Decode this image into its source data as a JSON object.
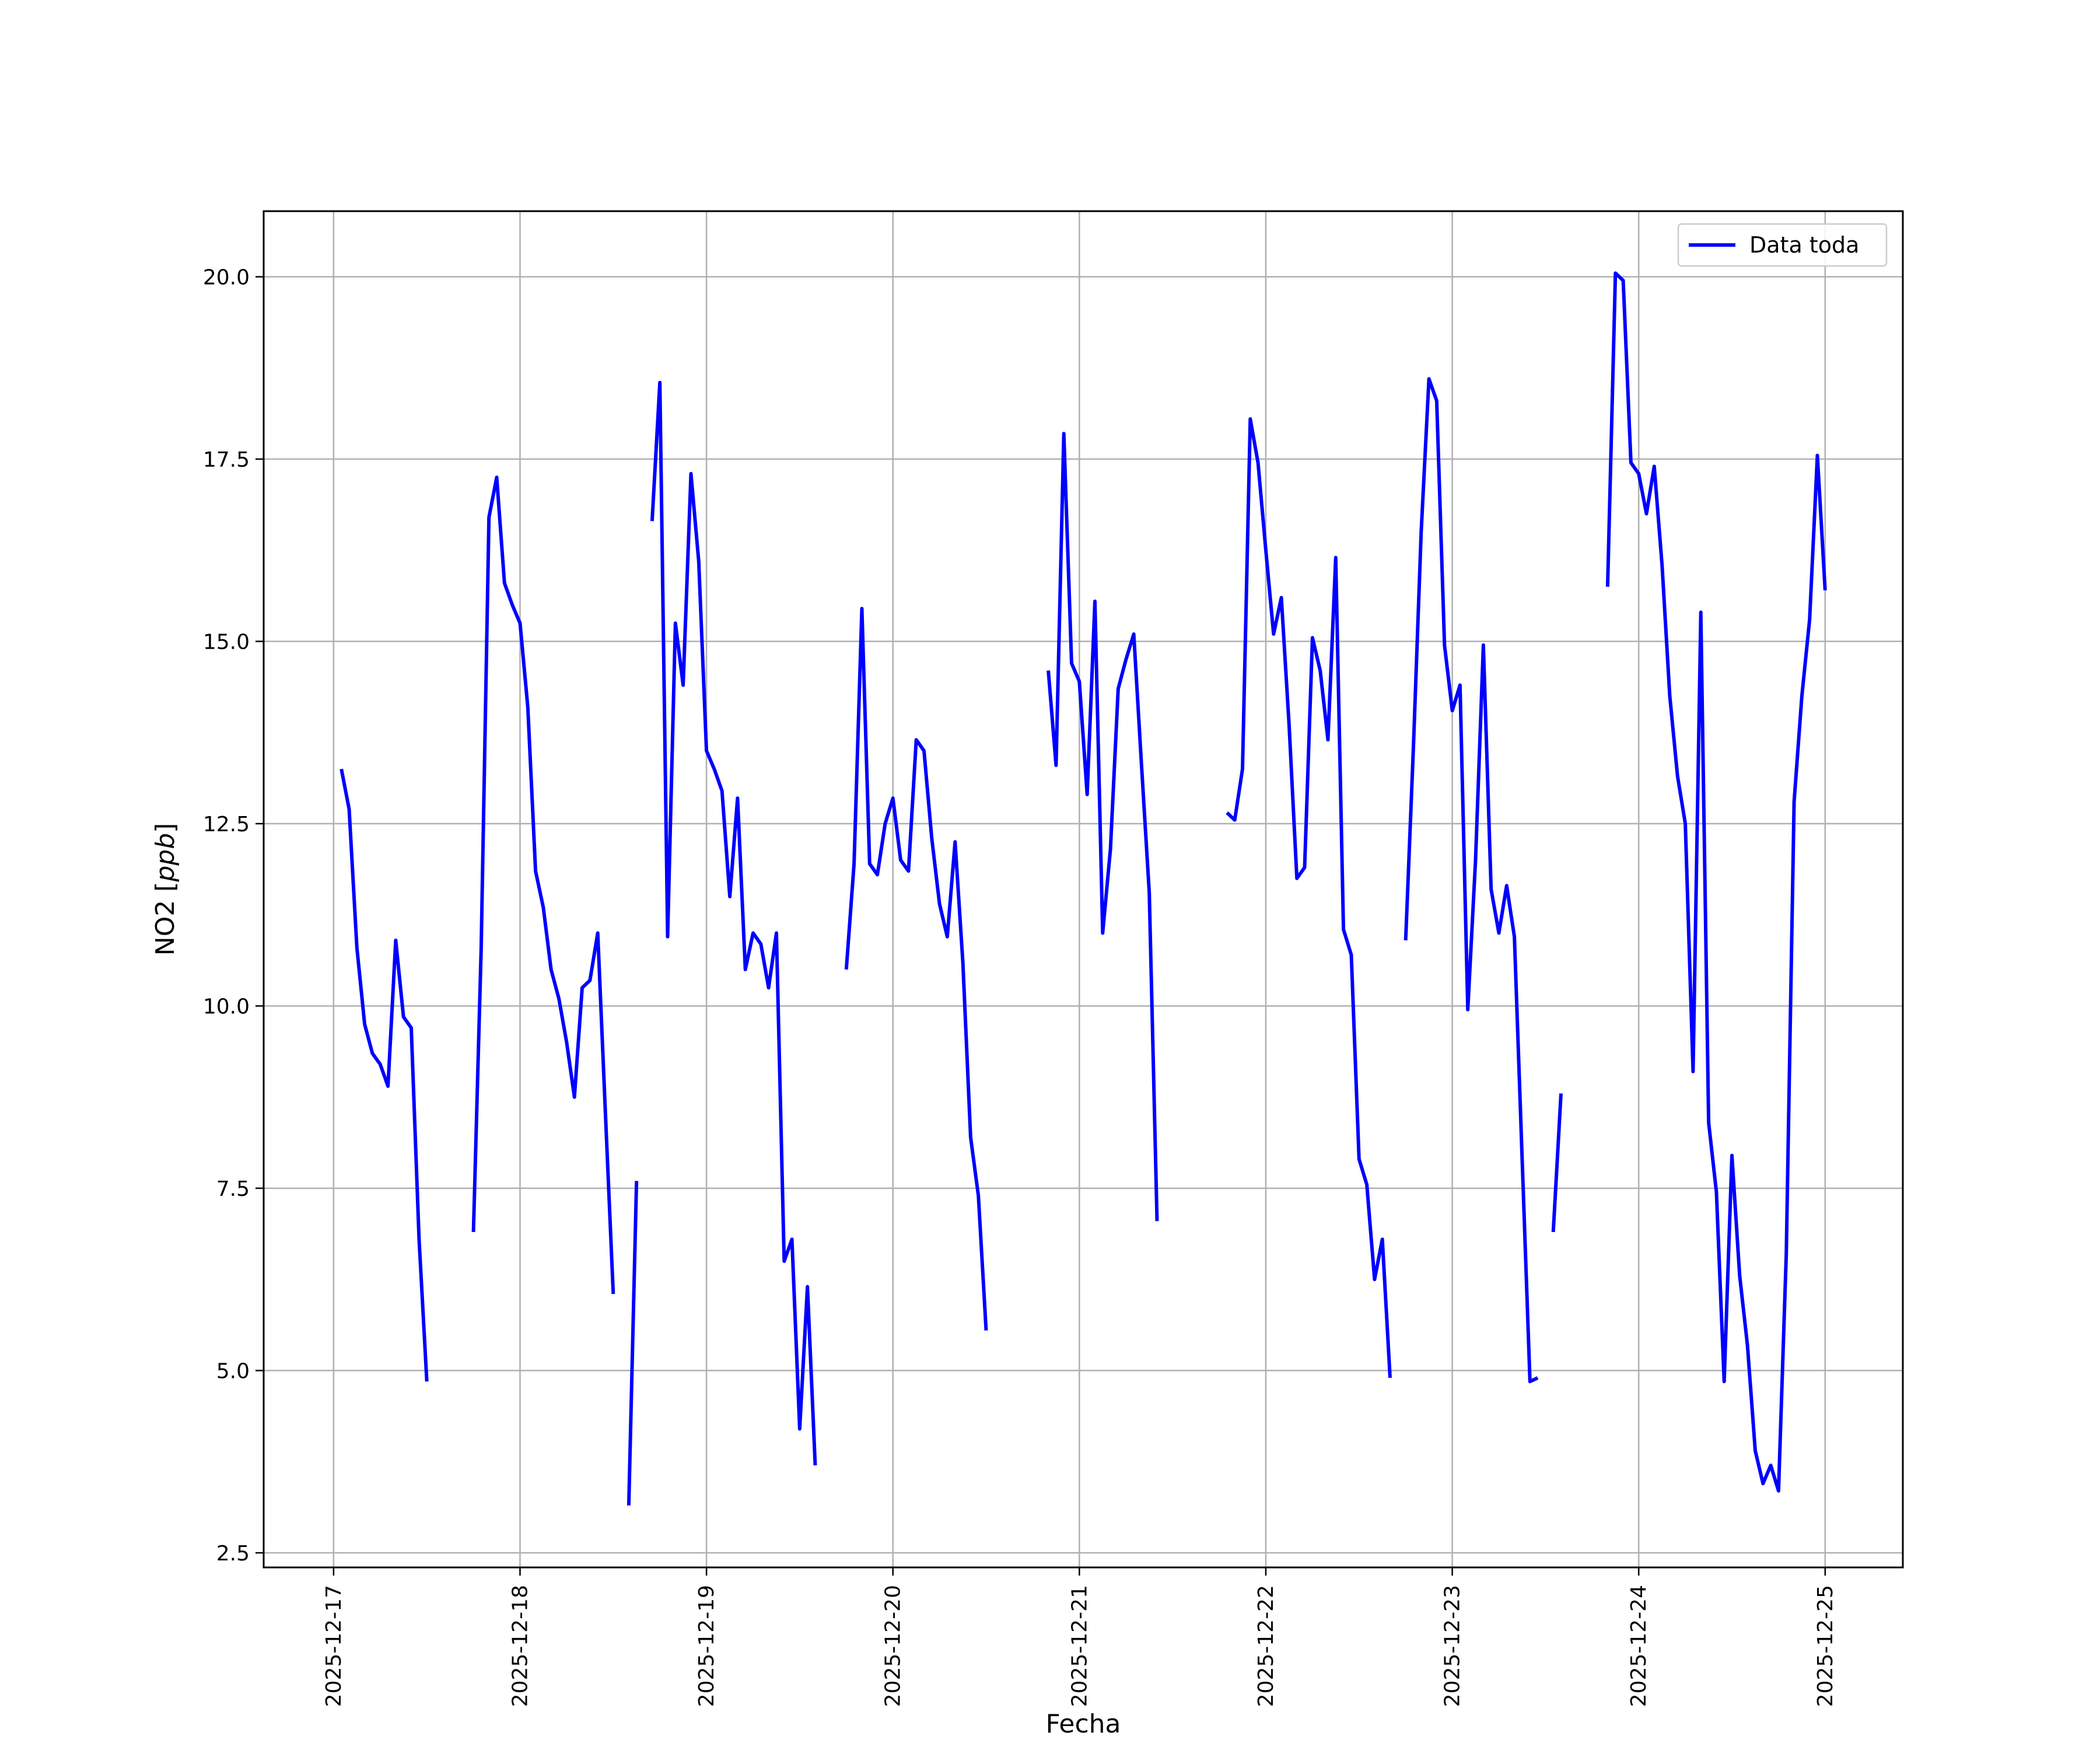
{
  "chart_data": {
    "type": "line",
    "xlabel": "Fecha",
    "ylabel": "NO2 [ppb]",
    "ylabel_main": "NO2 [",
    "ylabel_unit": "ppb",
    "ylabel_close": "]",
    "xlim": [
      "2025-12-16 15:00",
      "2025-12-25 10:00"
    ],
    "ylim": [
      2.3,
      20.9
    ],
    "grid": true,
    "legend": "top-right",
    "x_tick_labels": [
      "2025-12-17",
      "2025-12-18",
      "2025-12-19",
      "2025-12-20",
      "2025-12-21",
      "2025-12-22",
      "2025-12-23",
      "2025-12-24",
      "2025-12-25"
    ],
    "y_ticks": [
      2.5,
      5.0,
      7.5,
      10.0,
      12.5,
      15.0,
      17.5,
      20.0
    ],
    "y_tick_labels": [
      "2.5",
      "5.0",
      "7.5",
      "10.0",
      "12.5",
      "15.0",
      "17.5",
      "20.0"
    ],
    "series": [
      {
        "name": "Data toda",
        "color": "#0000ff",
        "segments": [
          [
            [
              "2025-12-17 01:00",
              13.25
            ],
            [
              "2025-12-17 02:00",
              12.7
            ],
            [
              "2025-12-17 03:00",
              10.8
            ],
            [
              "2025-12-17 04:00",
              9.75
            ],
            [
              "2025-12-17 05:00",
              9.35
            ],
            [
              "2025-12-17 06:00",
              9.2
            ],
            [
              "2025-12-17 07:00",
              8.9
            ],
            [
              "2025-12-17 08:00",
              10.9
            ],
            [
              "2025-12-17 09:00",
              9.85
            ],
            [
              "2025-12-17 10:00",
              9.7
            ],
            [
              "2025-12-17 11:00",
              6.8
            ],
            [
              "2025-12-17 12:00",
              4.85
            ]
          ],
          [
            [
              "2025-12-17 18:00",
              6.9
            ],
            [
              "2025-12-17 19:00",
              10.8
            ],
            [
              "2025-12-17 20:00",
              16.7
            ],
            [
              "2025-12-17 21:00",
              17.25
            ],
            [
              "2025-12-17 22:00",
              15.8
            ],
            [
              "2025-12-17 23:00",
              15.5
            ],
            [
              "2025-12-18 00:00",
              15.25
            ],
            [
              "2025-12-18 01:00",
              14.1
            ],
            [
              "2025-12-18 02:00",
              11.85
            ],
            [
              "2025-12-18 03:00",
              11.35
            ],
            [
              "2025-12-18 04:00",
              10.5
            ],
            [
              "2025-12-18 05:00",
              10.1
            ],
            [
              "2025-12-18 06:00",
              9.5
            ],
            [
              "2025-12-18 07:00",
              8.75
            ],
            [
              "2025-12-18 08:00",
              10.25
            ],
            [
              "2025-12-18 09:00",
              10.35
            ],
            [
              "2025-12-18 10:00",
              11.0
            ],
            [
              "2025-12-18 11:00",
              8.5
            ],
            [
              "2025-12-18 12:00",
              6.05
            ]
          ],
          [
            [
              "2025-12-18 14:00",
              3.15
            ],
            [
              "2025-12-18 15:00",
              7.6
            ]
          ],
          [
            [
              "2025-12-18 17:00",
              16.65
            ],
            [
              "2025-12-18 18:00",
              18.55
            ],
            [
              "2025-12-18 19:00",
              10.95
            ],
            [
              "2025-12-18 20:00",
              15.25
            ],
            [
              "2025-12-18 21:00",
              14.4
            ],
            [
              "2025-12-18 22:00",
              17.3
            ],
            [
              "2025-12-18 23:00",
              16.1
            ],
            [
              "2025-12-19 00:00",
              13.5
            ],
            [
              "2025-12-19 01:00",
              13.25
            ],
            [
              "2025-12-19 02:00",
              12.95
            ],
            [
              "2025-12-19 03:00",
              11.5
            ],
            [
              "2025-12-19 04:00",
              12.85
            ],
            [
              "2025-12-19 05:00",
              10.5
            ],
            [
              "2025-12-19 06:00",
              11.0
            ],
            [
              "2025-12-19 07:00",
              10.85
            ],
            [
              "2025-12-19 08:00",
              10.25
            ],
            [
              "2025-12-19 09:00",
              11.0
            ],
            [
              "2025-12-19 10:00",
              6.5
            ],
            [
              "2025-12-19 11:00",
              6.8
            ],
            [
              "2025-12-19 12:00",
              4.2
            ],
            [
              "2025-12-19 13:00",
              6.15
            ],
            [
              "2025-12-19 14:00",
              3.7
            ]
          ],
          [
            [
              "2025-12-19 18:00",
              10.5
            ],
            [
              "2025-12-19 19:00",
              11.95
            ],
            [
              "2025-12-19 20:00",
              15.45
            ],
            [
              "2025-12-19 21:00",
              11.95
            ],
            [
              "2025-12-19 22:00",
              11.8
            ],
            [
              "2025-12-19 23:00",
              12.5
            ],
            [
              "2025-12-20 00:00",
              12.85
            ],
            [
              "2025-12-20 01:00",
              12.0
            ],
            [
              "2025-12-20 02:00",
              11.85
            ],
            [
              "2025-12-20 03:00",
              13.65
            ],
            [
              "2025-12-20 04:00",
              13.5
            ],
            [
              "2025-12-20 05:00",
              12.3
            ],
            [
              "2025-12-20 06:00",
              11.4
            ],
            [
              "2025-12-20 07:00",
              10.95
            ],
            [
              "2025-12-20 08:00",
              12.25
            ],
            [
              "2025-12-20 09:00",
              10.6
            ],
            [
              "2025-12-20 10:00",
              8.2
            ],
            [
              "2025-12-20 11:00",
              7.4
            ],
            [
              "2025-12-20 12:00",
              5.55
            ]
          ],
          [
            [
              "2025-12-20 20:00",
              14.6
            ],
            [
              "2025-12-20 21:00",
              13.3
            ],
            [
              "2025-12-20 22:00",
              17.85
            ],
            [
              "2025-12-20 23:00",
              14.7
            ],
            [
              "2025-12-21 00:00",
              14.45
            ],
            [
              "2025-12-21 01:00",
              12.9
            ],
            [
              "2025-12-21 02:00",
              15.55
            ],
            [
              "2025-12-21 03:00",
              11.0
            ],
            [
              "2025-12-21 04:00",
              12.15
            ],
            [
              "2025-12-21 05:00",
              14.35
            ],
            [
              "2025-12-21 06:00",
              14.75
            ],
            [
              "2025-12-21 07:00",
              15.1
            ],
            [
              "2025-12-21 08:00",
              13.3
            ],
            [
              "2025-12-21 09:00",
              11.55
            ],
            [
              "2025-12-21 10:00",
              7.05
            ]
          ],
          [
            [
              "2025-12-21 19:00",
              12.65
            ],
            [
              "2025-12-21 20:00",
              12.55
            ],
            [
              "2025-12-21 21:00",
              13.25
            ],
            [
              "2025-12-21 22:00",
              18.05
            ],
            [
              "2025-12-21 23:00",
              17.45
            ],
            [
              "2025-12-22 00:00",
              16.25
            ],
            [
              "2025-12-22 01:00",
              15.1
            ],
            [
              "2025-12-22 02:00",
              15.6
            ],
            [
              "2025-12-22 03:00",
              13.85
            ],
            [
              "2025-12-22 04:00",
              11.75
            ],
            [
              "2025-12-22 05:00",
              11.9
            ],
            [
              "2025-12-22 06:00",
              15.05
            ],
            [
              "2025-12-22 07:00",
              14.6
            ],
            [
              "2025-12-22 08:00",
              13.65
            ],
            [
              "2025-12-22 09:00",
              16.15
            ],
            [
              "2025-12-22 10:00",
              11.05
            ],
            [
              "2025-12-22 11:00",
              10.7
            ],
            [
              "2025-12-22 12:00",
              7.9
            ],
            [
              "2025-12-22 13:00",
              7.55
            ],
            [
              "2025-12-22 14:00",
              6.25
            ],
            [
              "2025-12-22 15:00",
              6.8
            ],
            [
              "2025-12-22 16:00",
              4.9
            ]
          ],
          [
            [
              "2025-12-22 18:00",
              10.9
            ],
            [
              "2025-12-22 19:00",
              13.55
            ],
            [
              "2025-12-22 20:00",
              16.5
            ],
            [
              "2025-12-22 21:00",
              18.6
            ],
            [
              "2025-12-22 22:00",
              18.3
            ],
            [
              "2025-12-22 23:00",
              14.95
            ],
            [
              "2025-12-23 00:00",
              14.05
            ],
            [
              "2025-12-23 01:00",
              14.4
            ],
            [
              "2025-12-23 02:00",
              9.95
            ],
            [
              "2025-12-23 03:00",
              12.0
            ],
            [
              "2025-12-23 04:00",
              14.95
            ],
            [
              "2025-12-23 05:00",
              11.6
            ],
            [
              "2025-12-23 06:00",
              11.0
            ],
            [
              "2025-12-23 07:00",
              11.65
            ],
            [
              "2025-12-23 08:00",
              10.95
            ],
            [
              "2025-12-23 09:00",
              7.9
            ],
            [
              "2025-12-23 10:00",
              4.85
            ],
            [
              "2025-12-23 11:00",
              4.9
            ]
          ],
          [
            [
              "2025-12-23 13:00",
              6.9
            ],
            [
              "2025-12-23 14:00",
              8.8
            ]
          ],
          [
            [
              "2025-12-23 20:00",
              15.75
            ],
            [
              "2025-12-23 21:00",
              20.05
            ],
            [
              "2025-12-23 22:00",
              19.95
            ],
            [
              "2025-12-23 23:00",
              17.45
            ],
            [
              "2025-12-24 00:00",
              17.3
            ],
            [
              "2025-12-24 01:00",
              16.75
            ],
            [
              "2025-12-24 02:00",
              17.4
            ],
            [
              "2025-12-24 03:00",
              16.05
            ],
            [
              "2025-12-24 04:00",
              14.25
            ],
            [
              "2025-12-24 05:00",
              13.15
            ],
            [
              "2025-12-24 06:00",
              12.5
            ],
            [
              "2025-12-24 07:00",
              9.1
            ],
            [
              "2025-12-24 08:00",
              15.4
            ],
            [
              "2025-12-24 09:00",
              8.4
            ],
            [
              "2025-12-24 10:00",
              7.45
            ],
            [
              "2025-12-24 11:00",
              4.85
            ],
            [
              "2025-12-24 12:00",
              7.95
            ],
            [
              "2025-12-24 13:00",
              6.3
            ],
            [
              "2025-12-24 14:00",
              5.35
            ],
            [
              "2025-12-24 15:00",
              3.9
            ],
            [
              "2025-12-24 16:00",
              3.45
            ],
            [
              "2025-12-24 17:00",
              3.7
            ],
            [
              "2025-12-24 18:00",
              3.35
            ],
            [
              "2025-12-24 19:00",
              6.6
            ],
            [
              "2025-12-24 20:00",
              12.8
            ],
            [
              "2025-12-24 21:00",
              14.25
            ],
            [
              "2025-12-24 22:00",
              15.3
            ],
            [
              "2025-12-24 23:00",
              17.55
            ],
            [
              "2025-12-25 00:00",
              15.7
            ]
          ]
        ]
      }
    ]
  }
}
